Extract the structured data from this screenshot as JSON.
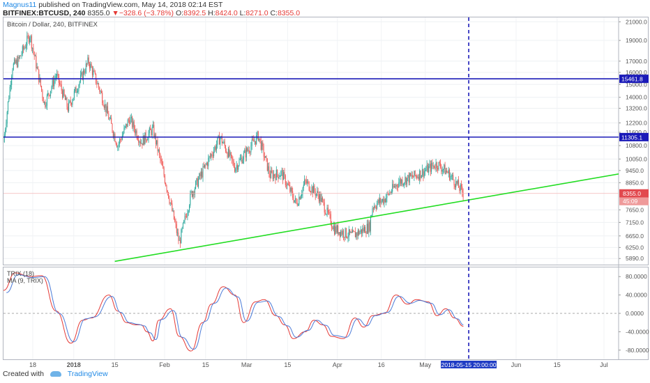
{
  "header": {
    "author": "Magnus11",
    "published_text": "published on TradingView.com, May 14, 2018 02:14 EST",
    "symbol": "BITFINEX:BTCUSD, 240",
    "last": "8355.0",
    "change_arrow": "▼",
    "change": "−328.6 (−3.78%)",
    "o_label": "O:",
    "o_value": "8392.5",
    "h_label": "H:",
    "h_value": "8424.0",
    "l_label": "L:",
    "l_value": "8271.0",
    "c_label": "C:",
    "c_value": "8355.0"
  },
  "footer": {
    "created_with": "Created with",
    "brand": "TradingView"
  },
  "colors": {
    "candle_up": "#26a69a",
    "candle_down": "#ef5350",
    "level_line": "#1a1ab8",
    "trend_line": "#22dd22",
    "vline": "#1a1ab8",
    "trix": "#e53935",
    "ma": "#4b7bd8"
  },
  "chart_data": [
    {
      "type": "candlestick",
      "title": "Bitcoin / Dollar, 240, BITFINEX",
      "x_tick_labels": [
        "18",
        "2018",
        "15",
        "Feb",
        "15",
        "Mar",
        "15",
        "Apr",
        "16",
        "May",
        "Jun",
        "15",
        "Jul"
      ],
      "y_tick_labels": [
        "21000.0",
        "19000.0",
        "17000.0",
        "16000.0",
        "15000.0",
        "14000.0",
        "13200.0",
        "12200.0",
        "11600.0",
        "10800.0",
        "10050.0",
        "9450.0",
        "8850.0",
        "7650.0",
        "7150.0",
        "6650.0",
        "6250.0",
        "5890.0"
      ],
      "scale": "log",
      "ylim": [
        5700,
        21500
      ],
      "price_path": [
        {
          "date": "2017-12-08",
          "close": 11000
        },
        {
          "date": "2017-12-11",
          "close": 16500
        },
        {
          "date": "2017-12-13",
          "close": 17000
        },
        {
          "date": "2017-12-17",
          "close": 19600
        },
        {
          "date": "2017-12-22",
          "close": 13500
        },
        {
          "date": "2017-12-26",
          "close": 15800
        },
        {
          "date": "2017-12-30",
          "close": 13200
        },
        {
          "date": "2018-01-06",
          "close": 17000
        },
        {
          "date": "2018-01-10",
          "close": 14500
        },
        {
          "date": "2018-01-16",
          "close": 10800
        },
        {
          "date": "2018-01-20",
          "close": 12500
        },
        {
          "date": "2018-01-24",
          "close": 11000
        },
        {
          "date": "2018-01-28",
          "close": 11800
        },
        {
          "date": "2018-02-02",
          "close": 8500
        },
        {
          "date": "2018-02-06",
          "close": 6400
        },
        {
          "date": "2018-02-10",
          "close": 8300
        },
        {
          "date": "2018-02-16",
          "close": 10000
        },
        {
          "date": "2018-02-20",
          "close": 11300
        },
        {
          "date": "2018-02-25",
          "close": 9600
        },
        {
          "date": "2018-03-05",
          "close": 11400
        },
        {
          "date": "2018-03-09",
          "close": 9200
        },
        {
          "date": "2018-03-13",
          "close": 9300
        },
        {
          "date": "2018-03-18",
          "close": 7900
        },
        {
          "date": "2018-03-21",
          "close": 8900
        },
        {
          "date": "2018-03-26",
          "close": 8200
        },
        {
          "date": "2018-03-31",
          "close": 6900
        },
        {
          "date": "2018-04-06",
          "close": 6650
        },
        {
          "date": "2018-04-12",
          "close": 7000
        },
        {
          "date": "2018-04-13",
          "close": 7800
        },
        {
          "date": "2018-04-17",
          "close": 8100
        },
        {
          "date": "2018-04-22",
          "close": 8900
        },
        {
          "date": "2018-04-28",
          "close": 9200
        },
        {
          "date": "2018-05-05",
          "close": 9800
        },
        {
          "date": "2018-05-09",
          "close": 9300
        },
        {
          "date": "2018-05-14",
          "close": 8355
        }
      ],
      "horizontal_levels": [
        15461.8,
        11305.1
      ],
      "level_labels": [
        "15461.8",
        "11305.1"
      ],
      "last_price_label": "8355.0",
      "countdown_label": "45:09",
      "trendline": [
        {
          "date": "2018-01-15",
          "price": 5800
        },
        {
          "date": "2018-07-07",
          "price": 9300
        }
      ],
      "vertical_marker": "2018-05-15 20:00:00",
      "grid": true
    },
    {
      "type": "line",
      "legend": [
        "TRIX (18)",
        "MA (9, TRIX)"
      ],
      "y_tick_labels": [
        "80.0000",
        "40.0000",
        "0.0000",
        "-40.0000",
        "-80.0000"
      ],
      "ylim": [
        -100,
        100
      ],
      "series": [
        {
          "name": "TRIX (18)",
          "values": [
            {
              "date": "2017-12-08",
              "value": 50
            },
            {
              "date": "2017-12-12",
              "value": 88
            },
            {
              "date": "2017-12-17",
              "value": 80
            },
            {
              "date": "2017-12-21",
              "value": 82
            },
            {
              "date": "2017-12-26",
              "value": 5
            },
            {
              "date": "2017-12-31",
              "value": -65
            },
            {
              "date": "2018-01-04",
              "value": -15
            },
            {
              "date": "2018-01-07",
              "value": -10
            },
            {
              "date": "2018-01-13",
              "value": 40
            },
            {
              "date": "2018-01-16",
              "value": 5
            },
            {
              "date": "2018-01-19",
              "value": -20
            },
            {
              "date": "2018-01-22",
              "value": -25
            },
            {
              "date": "2018-01-24",
              "value": -25
            },
            {
              "date": "2018-01-26",
              "value": -40
            },
            {
              "date": "2018-01-28",
              "value": -60
            },
            {
              "date": "2018-01-30",
              "value": -15
            },
            {
              "date": "2018-02-03",
              "value": 10
            },
            {
              "date": "2018-02-06",
              "value": -50
            },
            {
              "date": "2018-02-10",
              "value": -82
            },
            {
              "date": "2018-02-14",
              "value": -20
            },
            {
              "date": "2018-02-17",
              "value": 20
            },
            {
              "date": "2018-02-21",
              "value": 58
            },
            {
              "date": "2018-02-25",
              "value": 40
            },
            {
              "date": "2018-02-28",
              "value": -20
            },
            {
              "date": "2018-03-04",
              "value": 25
            },
            {
              "date": "2018-03-07",
              "value": 30
            },
            {
              "date": "2018-03-11",
              "value": -5
            },
            {
              "date": "2018-03-14",
              "value": -25
            },
            {
              "date": "2018-03-17",
              "value": -55
            },
            {
              "date": "2018-03-21",
              "value": -40
            },
            {
              "date": "2018-03-24",
              "value": -15
            },
            {
              "date": "2018-03-27",
              "value": -25
            },
            {
              "date": "2018-03-30",
              "value": -50
            },
            {
              "date": "2018-04-03",
              "value": -55
            },
            {
              "date": "2018-04-07",
              "value": -10
            },
            {
              "date": "2018-04-10",
              "value": -30
            },
            {
              "date": "2018-04-13",
              "value": -5
            },
            {
              "date": "2018-04-17",
              "value": 0
            },
            {
              "date": "2018-04-21",
              "value": 40
            },
            {
              "date": "2018-04-25",
              "value": 20
            },
            {
              "date": "2018-04-28",
              "value": 30
            },
            {
              "date": "2018-05-02",
              "value": 25
            },
            {
              "date": "2018-05-05",
              "value": -5
            },
            {
              "date": "2018-05-08",
              "value": 10
            },
            {
              "date": "2018-05-11",
              "value": -10
            },
            {
              "date": "2018-05-14",
              "value": -28
            }
          ]
        },
        {
          "name": "MA (9, TRIX)",
          "values": [
            {
              "date": "2017-12-09",
              "value": 45
            },
            {
              "date": "2017-12-13",
              "value": 84
            },
            {
              "date": "2017-12-18",
              "value": 78
            },
            {
              "date": "2017-12-22",
              "value": 80
            },
            {
              "date": "2017-12-27",
              "value": 0
            },
            {
              "date": "2018-01-01",
              "value": -62
            },
            {
              "date": "2018-01-05",
              "value": -12
            },
            {
              "date": "2018-01-08",
              "value": -8
            },
            {
              "date": "2018-01-14",
              "value": 37
            },
            {
              "date": "2018-01-17",
              "value": 2
            },
            {
              "date": "2018-01-20",
              "value": -20
            },
            {
              "date": "2018-01-23",
              "value": -24
            },
            {
              "date": "2018-01-25",
              "value": -27
            },
            {
              "date": "2018-01-27",
              "value": -42
            },
            {
              "date": "2018-01-29",
              "value": -57
            },
            {
              "date": "2018-01-31",
              "value": -13
            },
            {
              "date": "2018-02-04",
              "value": 6
            },
            {
              "date": "2018-02-07",
              "value": -52
            },
            {
              "date": "2018-02-11",
              "value": -78
            },
            {
              "date": "2018-02-15",
              "value": -17
            },
            {
              "date": "2018-02-18",
              "value": 22
            },
            {
              "date": "2018-02-22",
              "value": 55
            },
            {
              "date": "2018-02-26",
              "value": 36
            },
            {
              "date": "2018-03-01",
              "value": -17
            },
            {
              "date": "2018-03-05",
              "value": 24
            },
            {
              "date": "2018-03-08",
              "value": 27
            },
            {
              "date": "2018-03-12",
              "value": -7
            },
            {
              "date": "2018-03-15",
              "value": -27
            },
            {
              "date": "2018-03-18",
              "value": -52
            },
            {
              "date": "2018-03-22",
              "value": -37
            },
            {
              "date": "2018-03-25",
              "value": -15
            },
            {
              "date": "2018-03-28",
              "value": -26
            },
            {
              "date": "2018-03-31",
              "value": -48
            },
            {
              "date": "2018-04-04",
              "value": -52
            },
            {
              "date": "2018-04-08",
              "value": -12
            },
            {
              "date": "2018-04-11",
              "value": -27
            },
            {
              "date": "2018-04-14",
              "value": -5
            },
            {
              "date": "2018-04-18",
              "value": 2
            },
            {
              "date": "2018-04-22",
              "value": 37
            },
            {
              "date": "2018-04-26",
              "value": 22
            },
            {
              "date": "2018-04-29",
              "value": 28
            },
            {
              "date": "2018-05-03",
              "value": 22
            },
            {
              "date": "2018-05-06",
              "value": -3
            },
            {
              "date": "2018-05-09",
              "value": 8
            },
            {
              "date": "2018-05-12",
              "value": -12
            },
            {
              "date": "2018-05-14",
              "value": -25
            }
          ]
        }
      ],
      "dashed_zero_line": true,
      "date_highlight_label": "2018-05-15 20:00:00"
    }
  ]
}
